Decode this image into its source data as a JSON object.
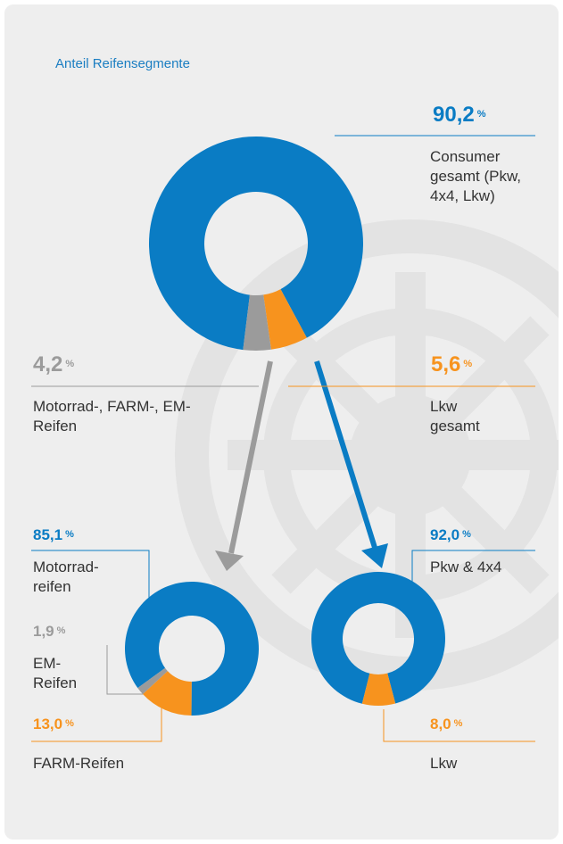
{
  "chart_data": [
    {
      "type": "donut",
      "title": "Anteil Reifensegmente",
      "categories": [
        "Consumer gesamt (Pkw, 4x4, Lkw)",
        "Motorrad-, FARM-, EM-Reifen",
        "Lkw gesamt"
      ],
      "values": [
        90.2,
        4.2,
        5.6
      ],
      "value_labels": [
        "90,2",
        "4,2",
        "5,6"
      ],
      "unit": "%",
      "colors": [
        "#0a7cc4",
        "#9b9b9b",
        "#f7931e"
      ]
    },
    {
      "type": "donut",
      "categories": [
        "Motorrad-reifen",
        "EM-Reifen",
        "FARM-Reifen"
      ],
      "values": [
        85.1,
        1.9,
        13.0
      ],
      "value_labels": [
        "85,1",
        "1,9",
        "13,0"
      ],
      "unit": "%",
      "colors": [
        "#0a7cc4",
        "#9b9b9b",
        "#f7931e"
      ]
    },
    {
      "type": "donut",
      "categories": [
        "Pkw & 4x4",
        "Lkw"
      ],
      "values": [
        92.0,
        8.0
      ],
      "value_labels": [
        "92,0",
        "8,0"
      ],
      "unit": "%",
      "colors": [
        "#0a7cc4",
        "#f7931e"
      ]
    }
  ]
}
